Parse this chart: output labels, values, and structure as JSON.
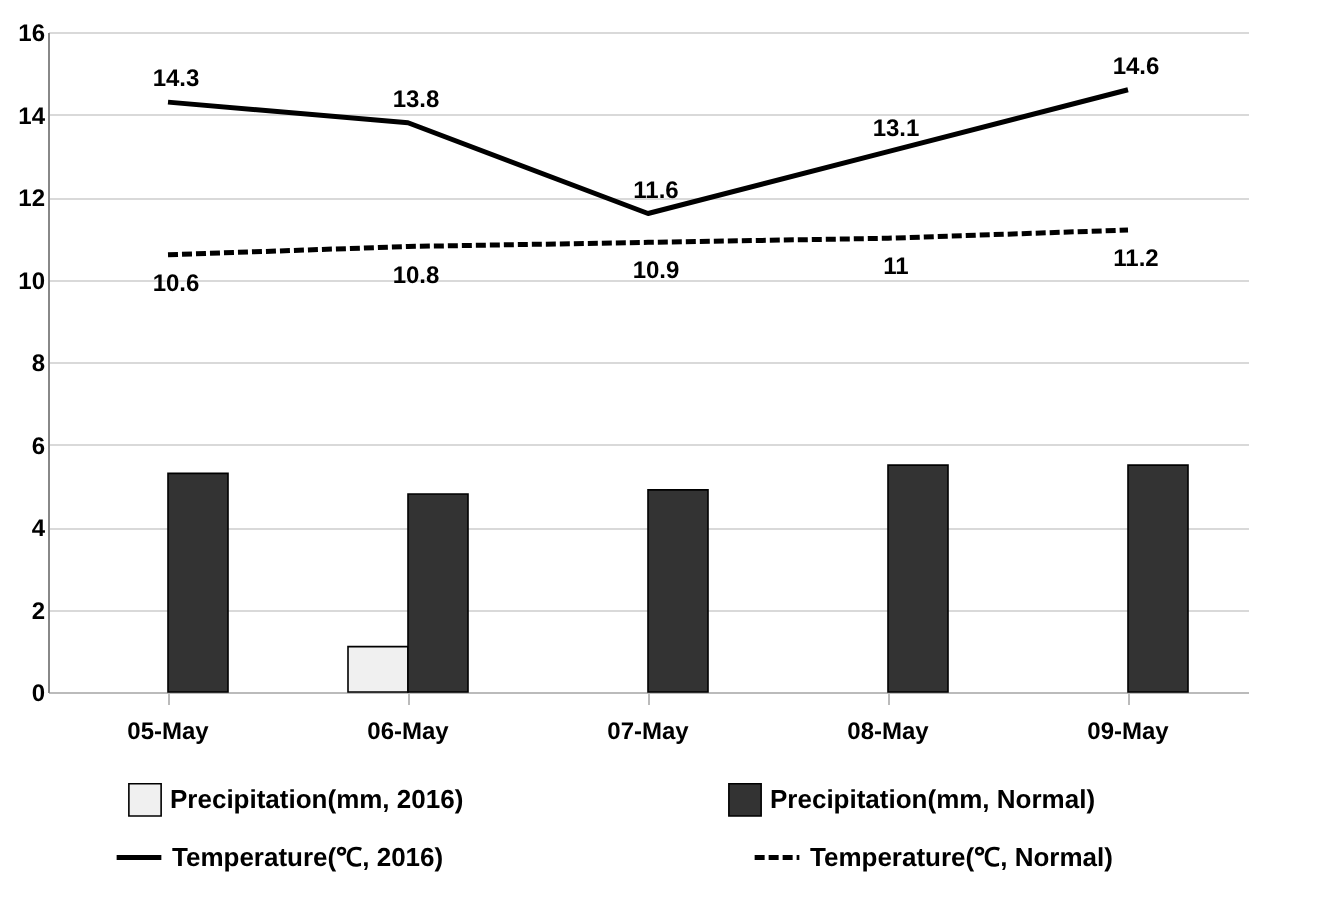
{
  "chart_data": {
    "type": "bar",
    "categories": [
      "05-May",
      "06-May",
      "07-May",
      "08-May",
      "09-May"
    ],
    "series": [
      {
        "name": "Precipitation(mm, 2016)",
        "color": "#f0f0f0",
        "values": [
          null,
          1.1,
          null,
          null,
          null
        ]
      },
      {
        "name": "Precipitation(mm, Normal)",
        "color": "#333333",
        "values": [
          5.3,
          4.8,
          4.9,
          5.5,
          5.5
        ]
      },
      {
        "name": "Temperature(℃, 2016)",
        "type": "line",
        "color": "#000000",
        "line_style": "solid",
        "values": [
          14.3,
          13.8,
          11.6,
          13.1,
          14.6
        ],
        "value_labels": [
          "14.3",
          "13.8",
          "11.6",
          "13.1",
          "14.6"
        ]
      },
      {
        "name": "Temperature(℃, Normal)",
        "type": "line",
        "color": "#000000",
        "line_style": "dashed",
        "values": [
          10.6,
          10.8,
          10.9,
          11,
          11.2
        ],
        "value_labels": [
          "10.6",
          "10.8",
          "10.9",
          "11",
          "11.2"
        ]
      }
    ],
    "ylim": [
      0,
      16
    ],
    "yticks": [
      0,
      2,
      4,
      6,
      8,
      10,
      12,
      14,
      16
    ],
    "grid": "y",
    "legend": "bottom"
  }
}
